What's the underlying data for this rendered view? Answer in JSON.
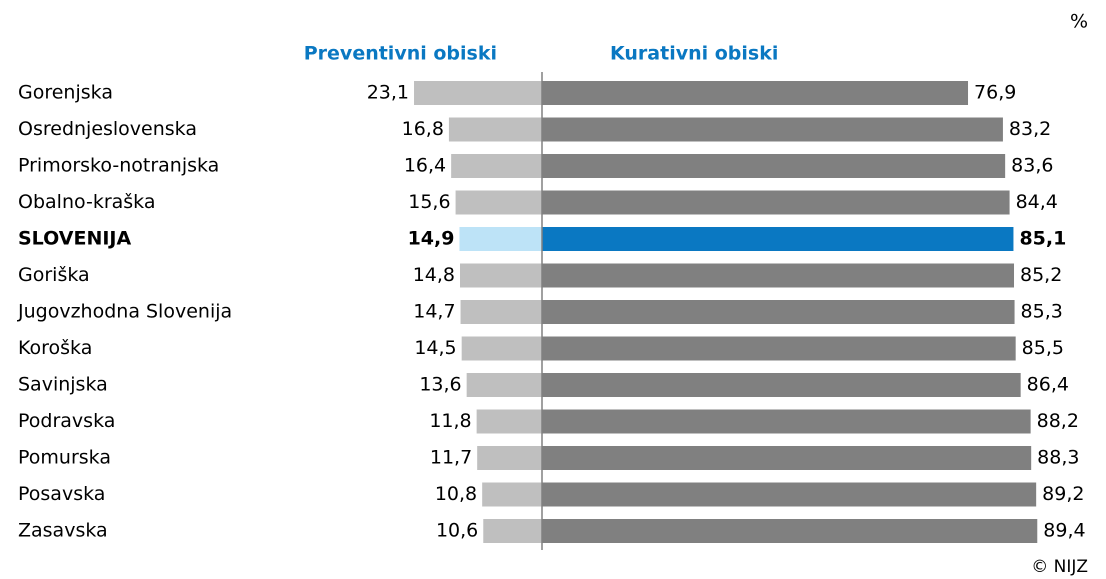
{
  "chart_data": {
    "type": "bar",
    "unit": "%",
    "source": "© NIJZ",
    "categories": [
      "Gorenjska",
      "Osrednjeslovenska",
      "Primorsko-notranjska",
      "Obalno-kraška",
      "SLOVENIJA",
      "Goriška",
      "Jugovzhodna Slovenija",
      "Koroška",
      "Savinjska",
      "Podravska",
      "Pomurska",
      "Posavska",
      "Zasavska"
    ],
    "category_colors": [
      "#000000",
      "#000000",
      "#000000",
      "#000000",
      "#0a78c2",
      "#000000",
      "#000000",
      "#000000",
      "#000000",
      "#000000",
      "#000000",
      "#000000",
      "#000000"
    ],
    "series": [
      {
        "name": "Preventivni obiski",
        "color": "#bfbfbf",
        "colors": [
          "#bfbfbf",
          "#bfbfbf",
          "#bfbfbf",
          "#bfbfbf",
          "#bde3f7",
          "#bfbfbf",
          "#bfbfbf",
          "#bfbfbf",
          "#bfbfbf",
          "#bfbfbf",
          "#bfbfbf",
          "#bfbfbf",
          "#bfbfbf"
        ],
        "values": [
          23.1,
          16.8,
          16.4,
          15.6,
          14.9,
          14.8,
          14.7,
          14.5,
          13.6,
          11.8,
          11.7,
          10.8,
          10.6
        ],
        "value_labels": [
          "23,1",
          "16,8",
          "16,4",
          "15,6",
          "14,9",
          "14,8",
          "14,7",
          "14,5",
          "13,6",
          "11,8",
          "11,7",
          "10,8",
          "10,6"
        ]
      },
      {
        "name": "Kurativni obiski",
        "color": "#808080",
        "colors": [
          "#808080",
          "#808080",
          "#808080",
          "#808080",
          "#0a78c2",
          "#808080",
          "#808080",
          "#808080",
          "#808080",
          "#808080",
          "#808080",
          "#808080",
          "#808080"
        ],
        "values": [
          76.9,
          83.2,
          83.6,
          84.4,
          85.1,
          85.2,
          85.3,
          85.5,
          86.4,
          88.2,
          88.3,
          89.2,
          89.4
        ],
        "value_labels": [
          "76,9",
          "83,2",
          "83,6",
          "84,4",
          "85,1",
          "85,2",
          "85,3",
          "85,5",
          "86,4",
          "88,2",
          "88,3",
          "89,2",
          "89,4"
        ]
      }
    ]
  }
}
